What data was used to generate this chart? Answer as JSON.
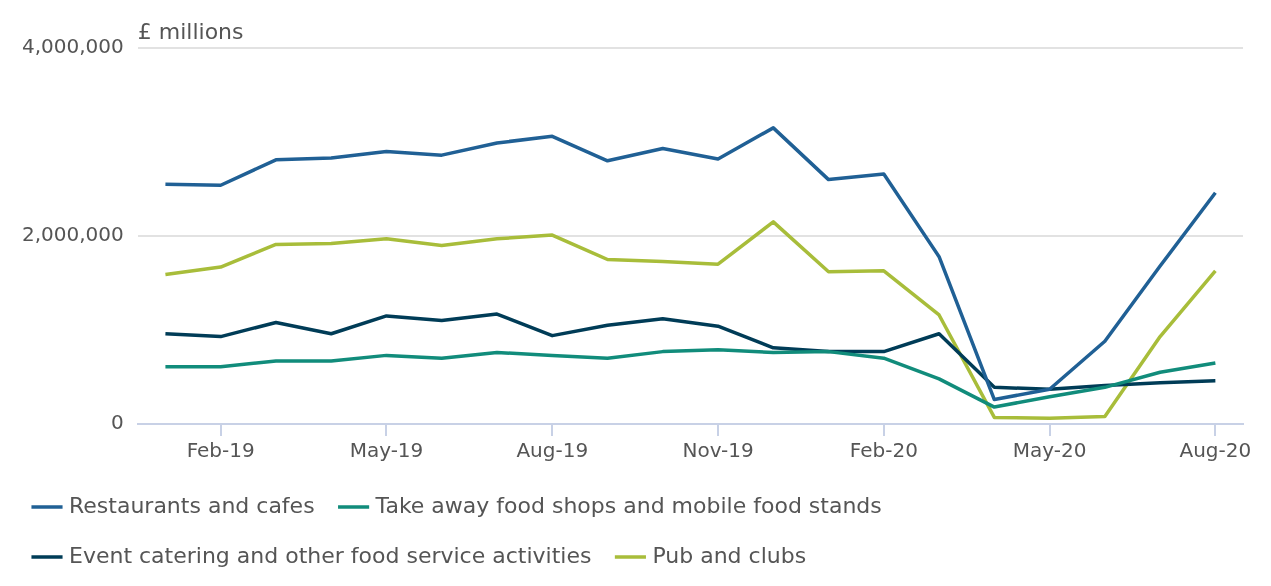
{
  "chart_data": {
    "type": "line",
    "ylabel": "£ millions",
    "categories": [
      null,
      "Feb-19",
      null,
      null,
      "May-19",
      null,
      null,
      "Aug-19",
      null,
      null,
      "Nov-19",
      null,
      null,
      "Feb-20",
      null,
      null,
      "May-20",
      null,
      null,
      "Aug-20"
    ],
    "series": [
      {
        "name": "Restaurants and cafes",
        "color": "#206095",
        "values": [
          2550000,
          2540000,
          2810000,
          2830000,
          2900000,
          2860000,
          2990000,
          3060000,
          2800000,
          2930000,
          2820000,
          3150000,
          2600000,
          2660000,
          1780000,
          260000,
          370000,
          880000,
          1680000,
          2460000
        ]
      },
      {
        "name": "Take away food shops and mobile food stands",
        "color": "#118c7b",
        "values": [
          610000,
          610000,
          670000,
          670000,
          730000,
          700000,
          760000,
          730000,
          700000,
          770000,
          790000,
          760000,
          770000,
          700000,
          480000,
          180000,
          290000,
          390000,
          550000,
          650000
        ]
      },
      {
        "name": "Event catering and other food service activities",
        "color": "#003c57",
        "values": [
          960000,
          930000,
          1080000,
          960000,
          1150000,
          1100000,
          1170000,
          940000,
          1050000,
          1120000,
          1040000,
          810000,
          770000,
          770000,
          960000,
          390000,
          370000,
          410000,
          440000,
          460000
        ]
      },
      {
        "name": "Pub and clubs",
        "color": "#a8bd3a",
        "values": [
          1590000,
          1670000,
          1910000,
          1920000,
          1970000,
          1900000,
          1970000,
          2010000,
          1750000,
          1730000,
          1700000,
          2150000,
          1620000,
          1630000,
          1160000,
          70000,
          60000,
          80000,
          930000,
          1630000
        ]
      }
    ],
    "ylim": [
      0,
      4000000
    ],
    "yticks": [
      0,
      {
        "value": 2000000,
        "label": "2,000,000"
      },
      {
        "value": 4000000,
        "label": "4,000,000"
      }
    ],
    "grid": "y",
    "legend": "bottom",
    "marker": "none",
    "line_style": "solid"
  }
}
